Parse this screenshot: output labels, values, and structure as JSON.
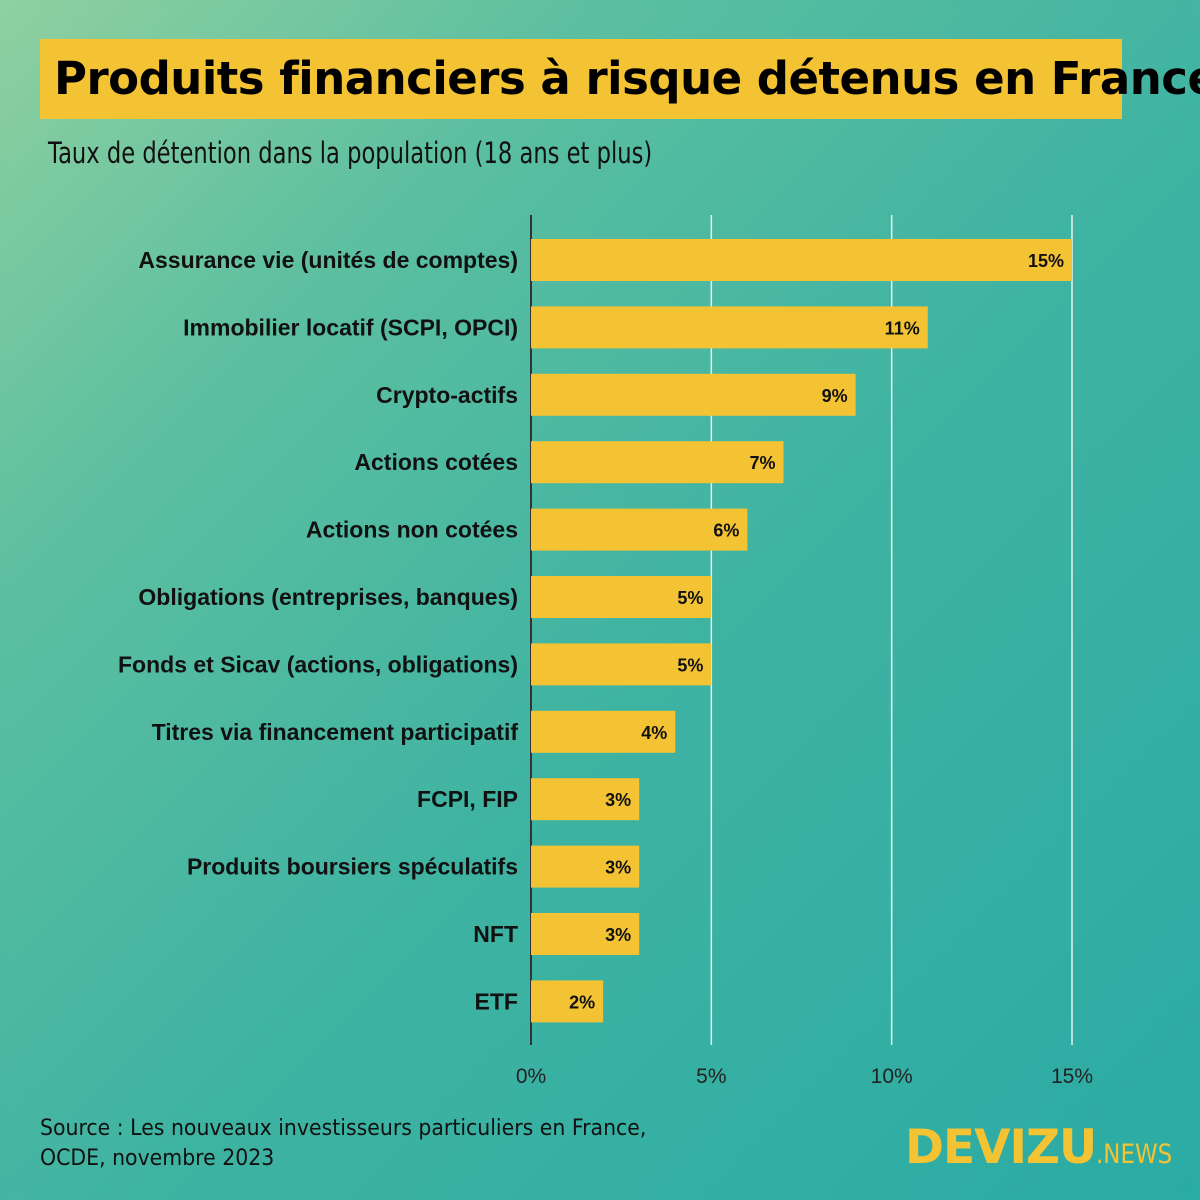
{
  "title": "Produits financiers à risque détenus en France",
  "subtitle": "Taux de détention dans la population (18 ans et plus)",
  "source_line1": "Source : Les nouveaux investisseurs particuliers en France,",
  "source_line2": "OCDE, novembre 2023",
  "logo": {
    "main": "DEVIZU",
    "suffix": ".NEWS"
  },
  "colors": {
    "bar": "#f3c334",
    "title_bg": "#f3c334",
    "background": "#2aaba4"
  },
  "chart_data": {
    "type": "bar",
    "orientation": "horizontal",
    "categories": [
      "Assurance vie (unités de comptes)",
      "Immobilier locatif (SCPI, OPCI)",
      "Crypto-actifs",
      "Actions cotées",
      "Actions non cotées",
      "Obligations (entreprises, banques)",
      "Fonds et Sicav (actions, obligations)",
      "Titres via financement participatif",
      "FCPI, FIP",
      "Produits boursiers spéculatifs",
      "NFT",
      "ETF"
    ],
    "values": [
      15,
      11,
      9,
      7,
      6,
      5,
      5,
      4,
      3,
      3,
      3,
      2
    ],
    "data_labels": [
      "15%",
      "11%",
      "9%",
      "7%",
      "6%",
      "5%",
      "5%",
      "4%",
      "3%",
      "3%",
      "3%",
      "2%"
    ],
    "xlim": [
      0,
      15
    ],
    "xticks": [
      0,
      5,
      10,
      15
    ],
    "xtick_labels": [
      "0%",
      "5%",
      "10%",
      "15%"
    ],
    "grid": "vertical"
  }
}
